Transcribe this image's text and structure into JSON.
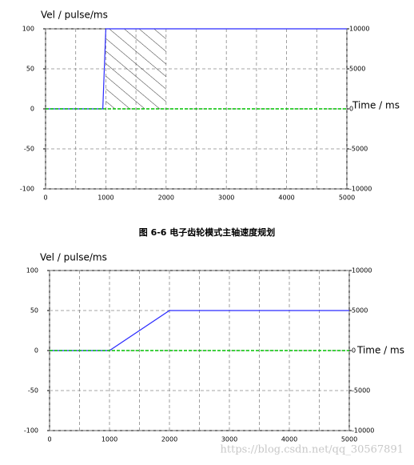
{
  "chart_data": [
    {
      "type": "line",
      "y_label": "Vel / pulse/ms",
      "x_label": "Time / ms",
      "xlim": [
        0,
        5000
      ],
      "xticks": [
        0,
        1000,
        2000,
        3000,
        4000,
        5000
      ],
      "x_minor_ticks": [
        500,
        1500,
        2500,
        3500,
        4500
      ],
      "ylim": [
        -100,
        100
      ],
      "yticks": [
        -100,
        -50,
        0,
        50,
        100
      ],
      "y2lim": [
        -10000,
        10000
      ],
      "y2ticks": [
        -10000,
        -5000,
        0,
        5000,
        10000
      ],
      "grid": true,
      "hatched_span": {
        "x": [
          1000,
          2000
        ],
        "y": [
          0,
          100
        ]
      },
      "series": [
        {
          "color": "#2b2bff",
          "dash": false,
          "x": [
            0,
            950,
            1000,
            5000
          ],
          "values": [
            0,
            0,
            100,
            100
          ]
        },
        {
          "color": "#00c000",
          "dash": true,
          "x": [
            0,
            5000
          ],
          "values": [
            0,
            0
          ]
        }
      ]
    },
    {
      "type": "line",
      "y_label": "Vel / pulse/ms",
      "x_label": "Time / ms",
      "xlim": [
        0,
        5000
      ],
      "xticks": [
        0,
        1000,
        2000,
        3000,
        4000,
        5000
      ],
      "x_minor_ticks": [
        500,
        1500,
        2500,
        3500,
        4500
      ],
      "ylim": [
        -100,
        100
      ],
      "yticks": [
        -100,
        -50,
        0,
        50,
        100
      ],
      "y2lim": [
        -10000,
        10000
      ],
      "y2ticks": [
        -10000,
        -5000,
        0,
        5000,
        10000
      ],
      "grid": true,
      "series": [
        {
          "color": "#2b2bff",
          "dash": false,
          "x": [
            0,
            1000,
            2000,
            5000
          ],
          "values": [
            0,
            0,
            50,
            50
          ]
        },
        {
          "color": "#00c000",
          "dash": true,
          "x": [
            0,
            5000
          ],
          "values": [
            0,
            0
          ]
        }
      ]
    }
  ],
  "caption": "图 6-6 电子齿轮模式主轴速度规划",
  "watermark": "https://blog.csdn.net/qq_30567891"
}
